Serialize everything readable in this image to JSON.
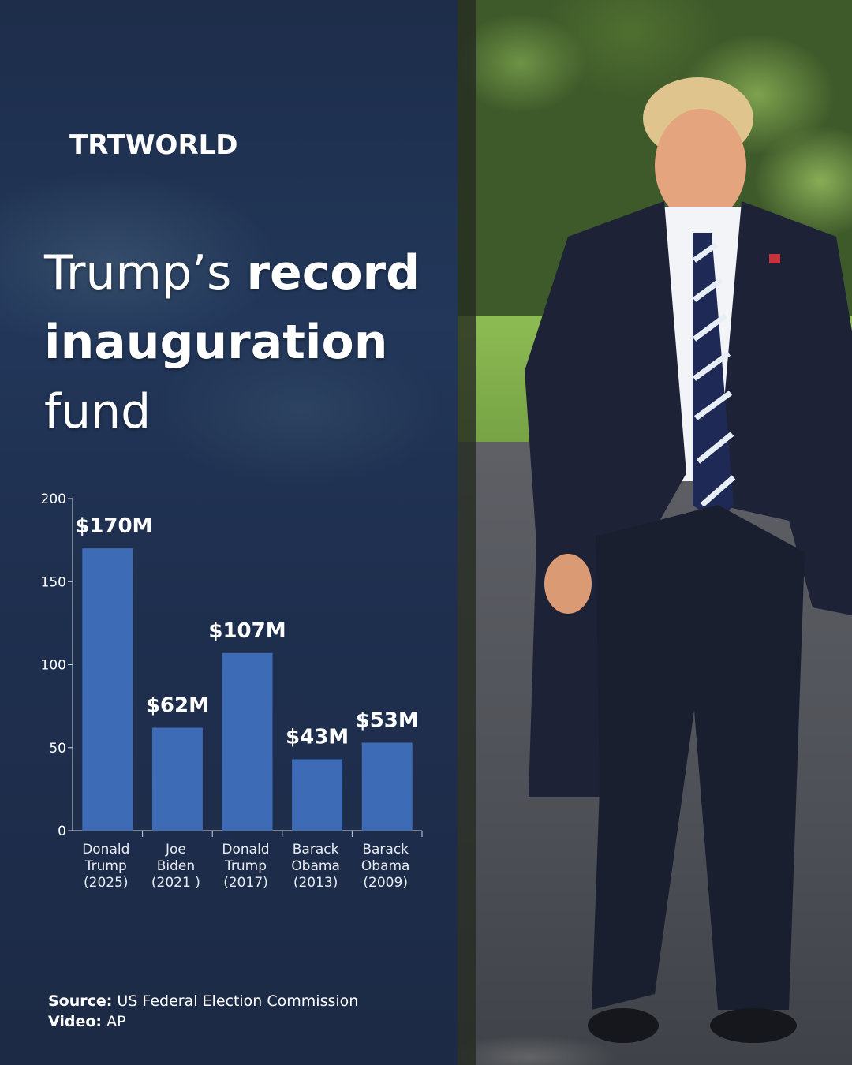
{
  "brand": {
    "logo": "TRTWORLD"
  },
  "headline": {
    "part1": "Trump’s ",
    "part2": "record",
    "part3": "inauguration",
    "part4": "fund"
  },
  "chart_data": {
    "type": "bar",
    "categories": [
      [
        "Donald",
        "Trump",
        "(2025)"
      ],
      [
        "Joe",
        "Biden",
        "(2021 )"
      ],
      [
        "Donald",
        "Trump",
        "(2017)"
      ],
      [
        "Barack",
        "Obama",
        "(2013)"
      ],
      [
        "Barack",
        "Obama",
        "(2009)"
      ]
    ],
    "values": [
      170,
      62,
      107,
      43,
      53
    ],
    "data_labels": [
      "$170M",
      "$62M",
      "$107M",
      "$43M",
      "$53M"
    ],
    "yticks": [
      0,
      50,
      100,
      150,
      200
    ],
    "ylim": [
      0,
      200
    ],
    "bar_color": "#3d6bb5",
    "title": "",
    "xlabel": "",
    "ylabel": ""
  },
  "footer": {
    "source_label": "Source:",
    "source_value": " US Federal Election Commission",
    "video_label": "Video:",
    "video_value": " AP"
  }
}
